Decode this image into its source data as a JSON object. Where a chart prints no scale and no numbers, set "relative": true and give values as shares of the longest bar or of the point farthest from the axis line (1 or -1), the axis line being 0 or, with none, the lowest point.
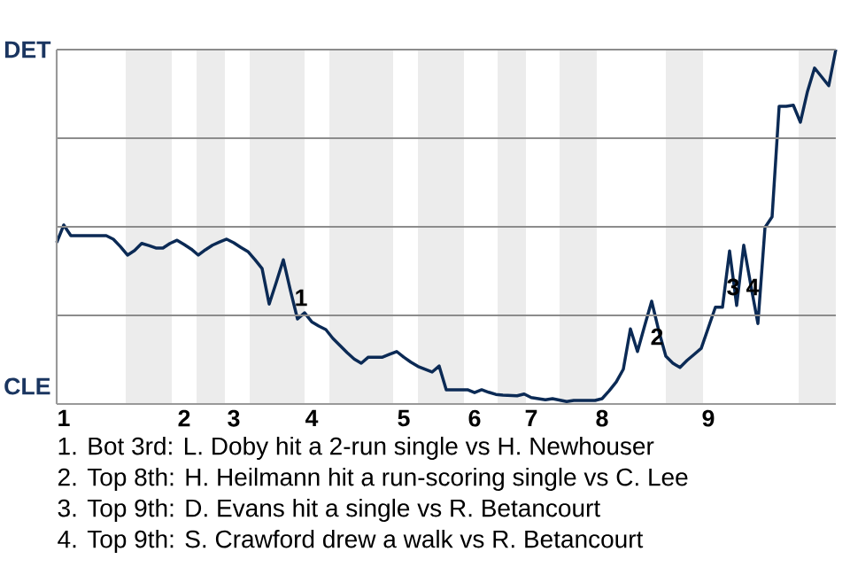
{
  "chart_data": {
    "type": "line",
    "relative": true,
    "categories": [
      null,
      "1",
      null,
      null,
      null,
      null,
      null,
      null,
      null,
      null,
      null,
      null,
      null,
      null,
      null,
      null,
      null,
      null,
      "2",
      null,
      null,
      null,
      null,
      null,
      null,
      "3",
      null,
      null,
      null,
      null,
      null,
      null,
      null,
      null,
      null,
      null,
      "4",
      null,
      null,
      null,
      null,
      null,
      null,
      null,
      null,
      null,
      null,
      null,
      null,
      "5",
      null,
      null,
      null,
      null,
      null,
      null,
      null,
      null,
      null,
      "6",
      null,
      null,
      null,
      null,
      null,
      null,
      null,
      "7",
      null,
      null,
      null,
      null,
      null,
      null,
      null,
      null,
      null,
      "8",
      null,
      null,
      null,
      null,
      null,
      null,
      null,
      null,
      null,
      null,
      null,
      null,
      null,
      null,
      "9",
      null,
      null,
      null,
      null,
      null,
      null,
      null,
      null,
      null,
      null,
      null,
      null,
      null,
      null,
      null,
      null,
      null,
      null
    ],
    "series": [
      {
        "color": "#0b2a55",
        "values": [
          0.455,
          0.505,
          0.475,
          0.475,
          0.475,
          0.475,
          0.475,
          0.475,
          0.465,
          0.444,
          0.42,
          0.433,
          0.453,
          0.447,
          0.44,
          0.44,
          0.453,
          0.462,
          0.45,
          0.437,
          0.42,
          0.435,
          0.448,
          0.457,
          0.465,
          0.455,
          0.442,
          0.43,
          0.407,
          0.382,
          0.282,
          0.343,
          0.407,
          0.32,
          0.24,
          0.257,
          0.232,
          0.22,
          0.21,
          0.185,
          0.165,
          0.145,
          0.127,
          0.115,
          0.132,
          0.132,
          0.132,
          0.14,
          0.148,
          0.132,
          0.118,
          0.106,
          0.098,
          0.09,
          0.107,
          0.04,
          0.04,
          0.04,
          0.04,
          0.032,
          0.04,
          0.033,
          0.027,
          0.025,
          0.024,
          0.023,
          0.028,
          0.018,
          0.015,
          0.012,
          0.015,
          0.011,
          0.007,
          0.01,
          0.01,
          0.01,
          0.01,
          0.015,
          0.037,
          0.062,
          0.098,
          0.212,
          0.148,
          0.22,
          0.29,
          0.207,
          0.135,
          0.115,
          0.103,
          0.123,
          0.14,
          0.157,
          0.215,
          0.273,
          0.273,
          0.432,
          0.278,
          0.448,
          0.335,
          0.227,
          0.498,
          0.528,
          0.84,
          0.84,
          0.843,
          0.795,
          0.882,
          0.948,
          0.923,
          0.898,
          1
        ]
      }
    ],
    "grid": "y",
    "annotations": [
      "DET",
      "CLE",
      "1",
      "2",
      "3",
      "4",
      "1. Bot 3rd: L. Doby hit a 2-run single vs H. Newhouser",
      "2. Top 8th: H. Heilmann hit a run-scoring single vs C. Lee",
      "3. Top 9th: D. Evans hit a single vs R. Betancourt",
      "4. Top 9th: S. Crawford drew a walk vs R. Betancourt"
    ]
  }
}
